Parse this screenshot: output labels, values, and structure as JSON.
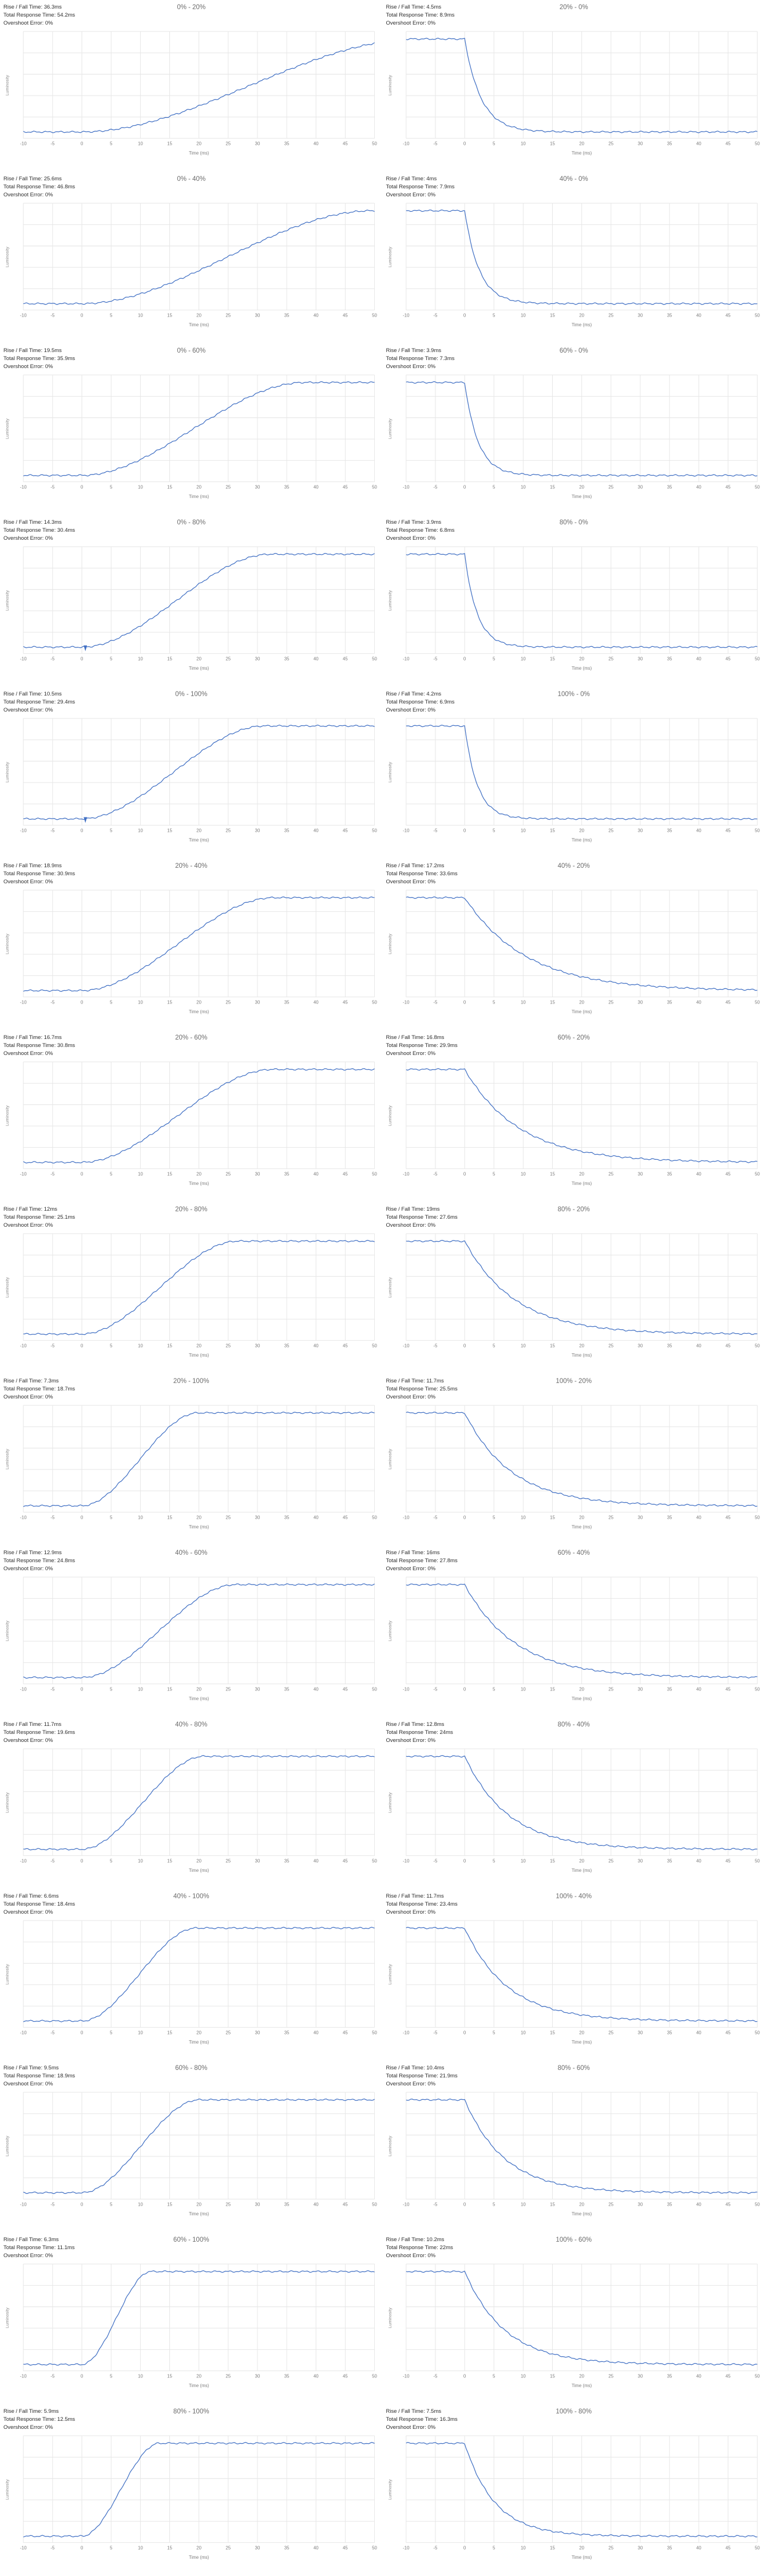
{
  "page": {
    "background": "#ffffff"
  },
  "colors": {
    "curve": "#4170c4",
    "grid": "#e6e6e6",
    "axis_text": "#7d7d7d",
    "info_text": "#2b2b2b",
    "title_text": "#6b6b6b"
  },
  "info_labels": {
    "rise_fall": "Rise / Fall Time:",
    "total_response": "Total Response Time:",
    "overshoot": "Overshoot Error:"
  },
  "axis": {
    "x_label": "Time (ms)",
    "y_label": "Luminosity",
    "x_range": [
      -10,
      50
    ],
    "x_ticks": [
      -10,
      -5,
      0,
      5,
      10,
      15,
      20,
      25,
      30,
      35,
      40,
      45,
      50
    ],
    "grid": true
  },
  "chart_data": [
    {
      "type": "line",
      "title": "0% - 20%",
      "from": "0%",
      "to": "20%",
      "direction": "rise",
      "rise_fall_time": "36.3ms",
      "total_response_time": "54.2ms",
      "overshoot_error": "0%",
      "rise_fall_ms": 36.3,
      "total_ms": 54.2
    },
    {
      "type": "line",
      "title": "20% - 0%",
      "from": "20%",
      "to": "0%",
      "direction": "fall",
      "rise_fall_time": "4.5ms",
      "total_response_time": "8.9ms",
      "overshoot_error": "0%",
      "rise_fall_ms": 4.5,
      "total_ms": 8.9
    },
    {
      "type": "line",
      "title": "0% - 40%",
      "from": "0%",
      "to": "40%",
      "direction": "rise",
      "rise_fall_time": "25.6ms",
      "total_response_time": "46.8ms",
      "overshoot_error": "0%",
      "rise_fall_ms": 25.6,
      "total_ms": 46.8
    },
    {
      "type": "line",
      "title": "40% - 0%",
      "from": "40%",
      "to": "0%",
      "direction": "fall",
      "rise_fall_time": "4ms",
      "total_response_time": "7.9ms",
      "overshoot_error": "0%",
      "rise_fall_ms": 4,
      "total_ms": 7.9
    },
    {
      "type": "line",
      "title": "0% - 60%",
      "from": "0%",
      "to": "60%",
      "direction": "rise",
      "rise_fall_time": "19.5ms",
      "total_response_time": "35.9ms",
      "overshoot_error": "0%",
      "rise_fall_ms": 19.5,
      "total_ms": 35.9
    },
    {
      "type": "line",
      "title": "60% - 0%",
      "from": "60%",
      "to": "0%",
      "direction": "fall",
      "rise_fall_time": "3.9ms",
      "total_response_time": "7.3ms",
      "overshoot_error": "0%",
      "rise_fall_ms": 3.9,
      "total_ms": 7.3
    },
    {
      "type": "line",
      "title": "0% - 80%",
      "from": "0%",
      "to": "80%",
      "direction": "rise",
      "rise_fall_time": "14.3ms",
      "total_response_time": "30.4ms",
      "overshoot_error": "0%",
      "rise_fall_ms": 14.3,
      "total_ms": 30.4,
      "zero_marker": true
    },
    {
      "type": "line",
      "title": "80% - 0%",
      "from": "80%",
      "to": "0%",
      "direction": "fall",
      "rise_fall_time": "3.9ms",
      "total_response_time": "6.8ms",
      "overshoot_error": "0%",
      "rise_fall_ms": 3.9,
      "total_ms": 6.8
    },
    {
      "type": "line",
      "title": "0% - 100%",
      "from": "0%",
      "to": "100%",
      "direction": "rise",
      "rise_fall_time": "10.5ms",
      "total_response_time": "29.4ms",
      "overshoot_error": "0%",
      "rise_fall_ms": 10.5,
      "total_ms": 29.4,
      "zero_marker": true
    },
    {
      "type": "line",
      "title": "100% - 0%",
      "from": "100%",
      "to": "0%",
      "direction": "fall",
      "rise_fall_time": "4.2ms",
      "total_response_time": "6.9ms",
      "overshoot_error": "0%",
      "rise_fall_ms": 4.2,
      "total_ms": 6.9
    },
    {
      "type": "line",
      "title": "20% - 40%",
      "from": "20%",
      "to": "40%",
      "direction": "rise",
      "rise_fall_time": "18.9ms",
      "total_response_time": "30.9ms",
      "overshoot_error": "0%",
      "rise_fall_ms": 18.9,
      "total_ms": 30.9
    },
    {
      "type": "line",
      "title": "40% - 20%",
      "from": "40%",
      "to": "20%",
      "direction": "fall",
      "rise_fall_time": "17.2ms",
      "total_response_time": "33.6ms",
      "overshoot_error": "0%",
      "rise_fall_ms": 17.2,
      "total_ms": 33.6
    },
    {
      "type": "line",
      "title": "20% - 60%",
      "from": "20%",
      "to": "60%",
      "direction": "rise",
      "rise_fall_time": "16.7ms",
      "total_response_time": "30.8ms",
      "overshoot_error": "0%",
      "rise_fall_ms": 16.7,
      "total_ms": 30.8
    },
    {
      "type": "line",
      "title": "60% - 20%",
      "from": "60%",
      "to": "20%",
      "direction": "fall",
      "rise_fall_time": "16.8ms",
      "total_response_time": "29.9ms",
      "overshoot_error": "0%",
      "rise_fall_ms": 16.8,
      "total_ms": 29.9
    },
    {
      "type": "line",
      "title": "20% - 80%",
      "from": "20%",
      "to": "80%",
      "direction": "rise",
      "rise_fall_time": "12ms",
      "total_response_time": "25.1ms",
      "overshoot_error": "0%",
      "rise_fall_ms": 12,
      "total_ms": 25.1
    },
    {
      "type": "line",
      "title": "80% - 20%",
      "from": "80%",
      "to": "20%",
      "direction": "fall",
      "rise_fall_time": "19ms",
      "total_response_time": "27.6ms",
      "overshoot_error": "0%",
      "rise_fall_ms": 19,
      "total_ms": 27.6
    },
    {
      "type": "line",
      "title": "20% - 100%",
      "from": "20%",
      "to": "100%",
      "direction": "rise",
      "rise_fall_time": "7.3ms",
      "total_response_time": "18.7ms",
      "overshoot_error": "0%",
      "rise_fall_ms": 7.3,
      "total_ms": 18.7
    },
    {
      "type": "line",
      "title": "100% - 20%",
      "from": "100%",
      "to": "20%",
      "direction": "fall",
      "rise_fall_time": "11.7ms",
      "total_response_time": "25.5ms",
      "overshoot_error": "0%",
      "rise_fall_ms": 11.7,
      "total_ms": 25.5
    },
    {
      "type": "line",
      "title": "40% - 60%",
      "from": "40%",
      "to": "60%",
      "direction": "rise",
      "rise_fall_time": "12.9ms",
      "total_response_time": "24.8ms",
      "overshoot_error": "0%",
      "rise_fall_ms": 12.9,
      "total_ms": 24.8
    },
    {
      "type": "line",
      "title": "60% - 40%",
      "from": "60%",
      "to": "40%",
      "direction": "fall",
      "rise_fall_time": "16ms",
      "total_response_time": "27.8ms",
      "overshoot_error": "0%",
      "rise_fall_ms": 16,
      "total_ms": 27.8
    },
    {
      "type": "line",
      "title": "40% - 80%",
      "from": "40%",
      "to": "80%",
      "direction": "rise",
      "rise_fall_time": "11.7ms",
      "total_response_time": "19.6ms",
      "overshoot_error": "0%",
      "rise_fall_ms": 11.7,
      "total_ms": 19.6
    },
    {
      "type": "line",
      "title": "80% - 40%",
      "from": "80%",
      "to": "40%",
      "direction": "fall",
      "rise_fall_time": "12.8ms",
      "total_response_time": "24ms",
      "overshoot_error": "0%",
      "rise_fall_ms": 12.8,
      "total_ms": 24
    },
    {
      "type": "line",
      "title": "40% - 100%",
      "from": "40%",
      "to": "100%",
      "direction": "rise",
      "rise_fall_time": "6.6ms",
      "total_response_time": "18.4ms",
      "overshoot_error": "0%",
      "rise_fall_ms": 6.6,
      "total_ms": 18.4
    },
    {
      "type": "line",
      "title": "100% - 40%",
      "from": "100%",
      "to": "40%",
      "direction": "fall",
      "rise_fall_time": "11.7ms",
      "total_response_time": "23.4ms",
      "overshoot_error": "0%",
      "rise_fall_ms": 11.7,
      "total_ms": 23.4
    },
    {
      "type": "line",
      "title": "60% - 80%",
      "from": "60%",
      "to": "80%",
      "direction": "rise",
      "rise_fall_time": "9.5ms",
      "total_response_time": "18.9ms",
      "overshoot_error": "0%",
      "rise_fall_ms": 9.5,
      "total_ms": 18.9
    },
    {
      "type": "line",
      "title": "80% - 60%",
      "from": "80%",
      "to": "60%",
      "direction": "fall",
      "rise_fall_time": "10.4ms",
      "total_response_time": "21.9ms",
      "overshoot_error": "0%",
      "rise_fall_ms": 10.4,
      "total_ms": 21.9
    },
    {
      "type": "line",
      "title": "60% - 100%",
      "from": "60%",
      "to": "100%",
      "direction": "rise",
      "rise_fall_time": "6.3ms",
      "total_response_time": "11.1ms",
      "overshoot_error": "0%",
      "rise_fall_ms": 6.3,
      "total_ms": 11.1
    },
    {
      "type": "line",
      "title": "100% - 60%",
      "from": "100%",
      "to": "60%",
      "direction": "fall",
      "rise_fall_time": "10.2ms",
      "total_response_time": "22ms",
      "overshoot_error": "0%",
      "rise_fall_ms": 10.2,
      "total_ms": 22
    },
    {
      "type": "line",
      "title": "80% - 100%",
      "from": "80%",
      "to": "100%",
      "direction": "rise",
      "rise_fall_time": "5.9ms",
      "total_response_time": "12.5ms",
      "overshoot_error": "0%",
      "rise_fall_ms": 5.9,
      "total_ms": 12.5
    },
    {
      "type": "line",
      "title": "100% - 80%",
      "from": "100%",
      "to": "80%",
      "direction": "fall",
      "rise_fall_time": "7.5ms",
      "total_response_time": "16.3ms",
      "overshoot_error": "0%",
      "rise_fall_ms": 7.5,
      "total_ms": 16.3
    }
  ]
}
